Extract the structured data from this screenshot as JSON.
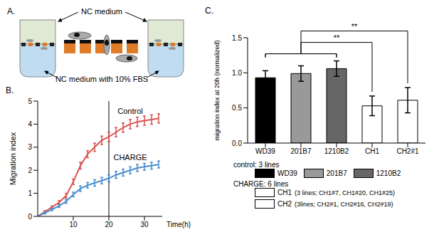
{
  "diagram": {
    "title": "A.",
    "labels": {
      "top": "NC medium",
      "bottom": "NC medium with 10% FBS"
    }
  },
  "chart_data": [
    {
      "type": "line",
      "title": "B.",
      "x": [
        0,
        2,
        4,
        6,
        8,
        10,
        12,
        14,
        16,
        18,
        20,
        22,
        24,
        26,
        28,
        30,
        32,
        34
      ],
      "series": [
        {
          "name": "Control",
          "color": "#d9534f",
          "values": [
            0,
            0.2,
            0.4,
            0.6,
            0.9,
            1.5,
            2.2,
            2.7,
            3.0,
            3.3,
            3.45,
            3.65,
            3.85,
            4.0,
            4.1,
            4.15,
            4.2,
            4.25
          ],
          "error": [
            0,
            0.05,
            0.05,
            0.08,
            0.1,
            0.12,
            0.15,
            0.15,
            0.18,
            0.18,
            0.2,
            0.2,
            0.2,
            0.2,
            0.2,
            0.2,
            0.2,
            0.2
          ]
        },
        {
          "name": "CHARGE",
          "color": "#4a8fd0",
          "values": [
            0,
            0.15,
            0.3,
            0.45,
            0.65,
            0.95,
            1.2,
            1.35,
            1.45,
            1.55,
            1.65,
            1.8,
            1.9,
            2.0,
            2.1,
            2.15,
            2.2,
            2.25
          ],
          "error": [
            0,
            0.04,
            0.05,
            0.06,
            0.08,
            0.1,
            0.12,
            0.12,
            0.14,
            0.14,
            0.15,
            0.15,
            0.15,
            0.15,
            0.15,
            0.15,
            0.15,
            0.15
          ]
        }
      ],
      "xlim": [
        0,
        35
      ],
      "xticks": [
        10,
        20,
        30
      ],
      "ylim": [
        0,
        5
      ],
      "yticks": [
        0,
        1,
        2,
        3,
        4,
        5
      ],
      "x_label": "Time(h)",
      "y_label": "Migration index",
      "reference_x": 20
    },
    {
      "type": "bar",
      "title": "C.",
      "categories": [
        "WD39",
        "201B7",
        "1210B2",
        "CH1",
        "CH2#1"
      ],
      "values": [
        0.93,
        0.99,
        1.06,
        0.53,
        0.61
      ],
      "error": [
        0.1,
        0.11,
        0.11,
        0.14,
        0.18
      ],
      "colors": [
        "#000000",
        "#999999",
        "#666666",
        "#ffffff",
        "#ffffff"
      ],
      "ylim": [
        0,
        1.5
      ],
      "yticks": [
        {
          "value": 0,
          "label": "0.0"
        },
        {
          "value": 0.5,
          "label": "0.5"
        },
        {
          "value": 1,
          "label": "1.0"
        },
        {
          "value": 1.5,
          "label": "1.5"
        }
      ],
      "y_label": "migration index at 20h (normalized)",
      "significance": [
        {
          "from": [
            "WD39",
            "201B7",
            "1210B2"
          ],
          "to": "CH1",
          "label": "**"
        },
        {
          "from": [
            "WD39",
            "201B7",
            "1210B2"
          ],
          "to": "CH2#1",
          "label": "**"
        }
      ],
      "groups": [
        {
          "title": "control: 3 lines",
          "items": [
            {
              "label": "WD39"
            },
            {
              "label": "201B7"
            },
            {
              "label": "1210B2"
            }
          ]
        },
        {
          "title": "CHARGE: 6 lines",
          "items": [
            {
              "label": "CH1",
              "note": "(3 lines; CH1#7, CH1#20, CH1#25)"
            },
            {
              "label": "CH2",
              "note": "(3lines; CH2#1, CH2#16, CH2#19)"
            }
          ]
        }
      ]
    }
  ]
}
